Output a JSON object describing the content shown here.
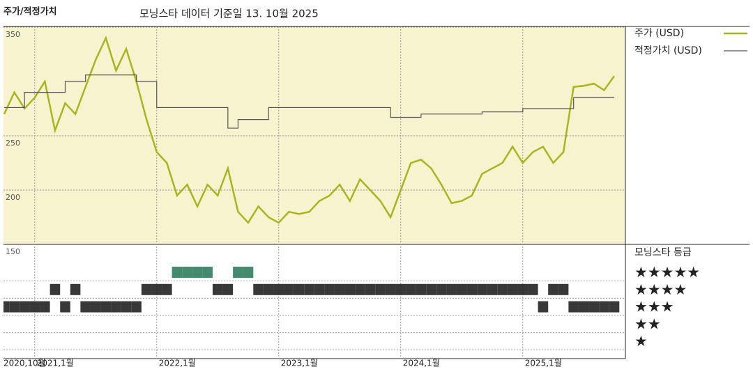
{
  "chart_data": {
    "type": "line",
    "title": "주가/적정가치",
    "subtitle": "모닝스타 데이터 기준일 13. 10월 2025",
    "x": [
      "2020-10",
      "2020-11",
      "2020-12",
      "2021-01",
      "2021-02",
      "2021-03",
      "2021-04",
      "2021-05",
      "2021-06",
      "2021-07",
      "2021-08",
      "2021-09",
      "2021-10",
      "2021-11",
      "2021-12",
      "2022-01",
      "2022-02",
      "2022-03",
      "2022-04",
      "2022-05",
      "2022-06",
      "2022-07",
      "2022-08",
      "2022-09",
      "2022-10",
      "2022-11",
      "2022-12",
      "2023-01",
      "2023-02",
      "2023-03",
      "2023-04",
      "2023-05",
      "2023-06",
      "2023-07",
      "2023-08",
      "2023-09",
      "2023-10",
      "2023-11",
      "2023-12",
      "2024-01",
      "2024-02",
      "2024-03",
      "2024-04",
      "2024-05",
      "2024-06",
      "2024-07",
      "2024-08",
      "2024-09",
      "2024-10",
      "2024-11",
      "2024-12",
      "2025-01",
      "2025-02",
      "2025-03",
      "2025-04",
      "2025-05",
      "2025-06",
      "2025-07",
      "2025-08",
      "2025-09",
      "2025-10"
    ],
    "xlim": [
      "2020-10",
      "2025-10"
    ],
    "xticks": [
      {
        "value": "2020-10",
        "label": "2020,10월"
      },
      {
        "value": "2021-01",
        "label": "2021,1월"
      },
      {
        "value": "2022-01",
        "label": "2022,1월"
      },
      {
        "value": "2023-01",
        "label": "2023,1월"
      },
      {
        "value": "2024-01",
        "label": "2024,1월"
      },
      {
        "value": "2025-01",
        "label": "2025,1월"
      }
    ],
    "ylim": [
      150,
      350
    ],
    "yticks": [
      150,
      200,
      250,
      350
    ],
    "background": "#f7f3cf",
    "series": [
      {
        "name": "주가 (USD)",
        "color": "#a9b41f",
        "values": [
          270,
          290,
          275,
          285,
          300,
          255,
          280,
          270,
          295,
          320,
          340,
          310,
          330,
          300,
          265,
          235,
          225,
          195,
          205,
          185,
          205,
          195,
          220,
          180,
          170,
          185,
          175,
          170,
          180,
          178,
          180,
          190,
          195,
          205,
          190,
          210,
          200,
          190,
          175,
          200,
          225,
          228,
          220,
          205,
          188,
          190,
          195,
          215,
          220,
          225,
          240,
          225,
          235,
          240,
          225,
          235,
          295,
          296,
          298,
          292,
          305
        ]
      },
      {
        "name": "적정가치 (USD)",
        "color": "#555555",
        "step": true,
        "values": [
          276,
          276,
          290,
          290,
          290,
          290,
          300,
          300,
          306,
          306,
          306,
          306,
          306,
          300,
          300,
          276,
          276,
          276,
          276,
          276,
          276,
          276,
          257,
          265,
          265,
          265,
          276,
          276,
          276,
          276,
          276,
          276,
          276,
          276,
          276,
          276,
          276,
          276,
          267,
          267,
          267,
          270,
          270,
          270,
          270,
          270,
          270,
          272,
          272,
          272,
          272,
          275,
          275,
          275,
          275,
          275,
          285,
          285,
          285,
          285,
          285
        ]
      }
    ],
    "rating": {
      "title": "모닝스타 등급",
      "levels": [
        "★★★★★",
        "★★★★",
        "★★★",
        "★★",
        "★"
      ],
      "level_values": [
        5,
        4,
        3,
        2,
        1
      ],
      "colors": [
        "#2f7d5e",
        "#222222",
        "#222222",
        "#222222",
        "#222222"
      ],
      "values": [
        3,
        3,
        3,
        3,
        3,
        4,
        3,
        4,
        3,
        3,
        3,
        3,
        3,
        3,
        4,
        4,
        4,
        5,
        5,
        5,
        5,
        4,
        4,
        5,
        5,
        4,
        4,
        4,
        4,
        4,
        4,
        4,
        4,
        4,
        4,
        4,
        4,
        4,
        4,
        4,
        4,
        4,
        4,
        4,
        4,
        4,
        4,
        4,
        4,
        4,
        4,
        4,
        4,
        3,
        4,
        4,
        3,
        3,
        3,
        3,
        3
      ]
    }
  }
}
